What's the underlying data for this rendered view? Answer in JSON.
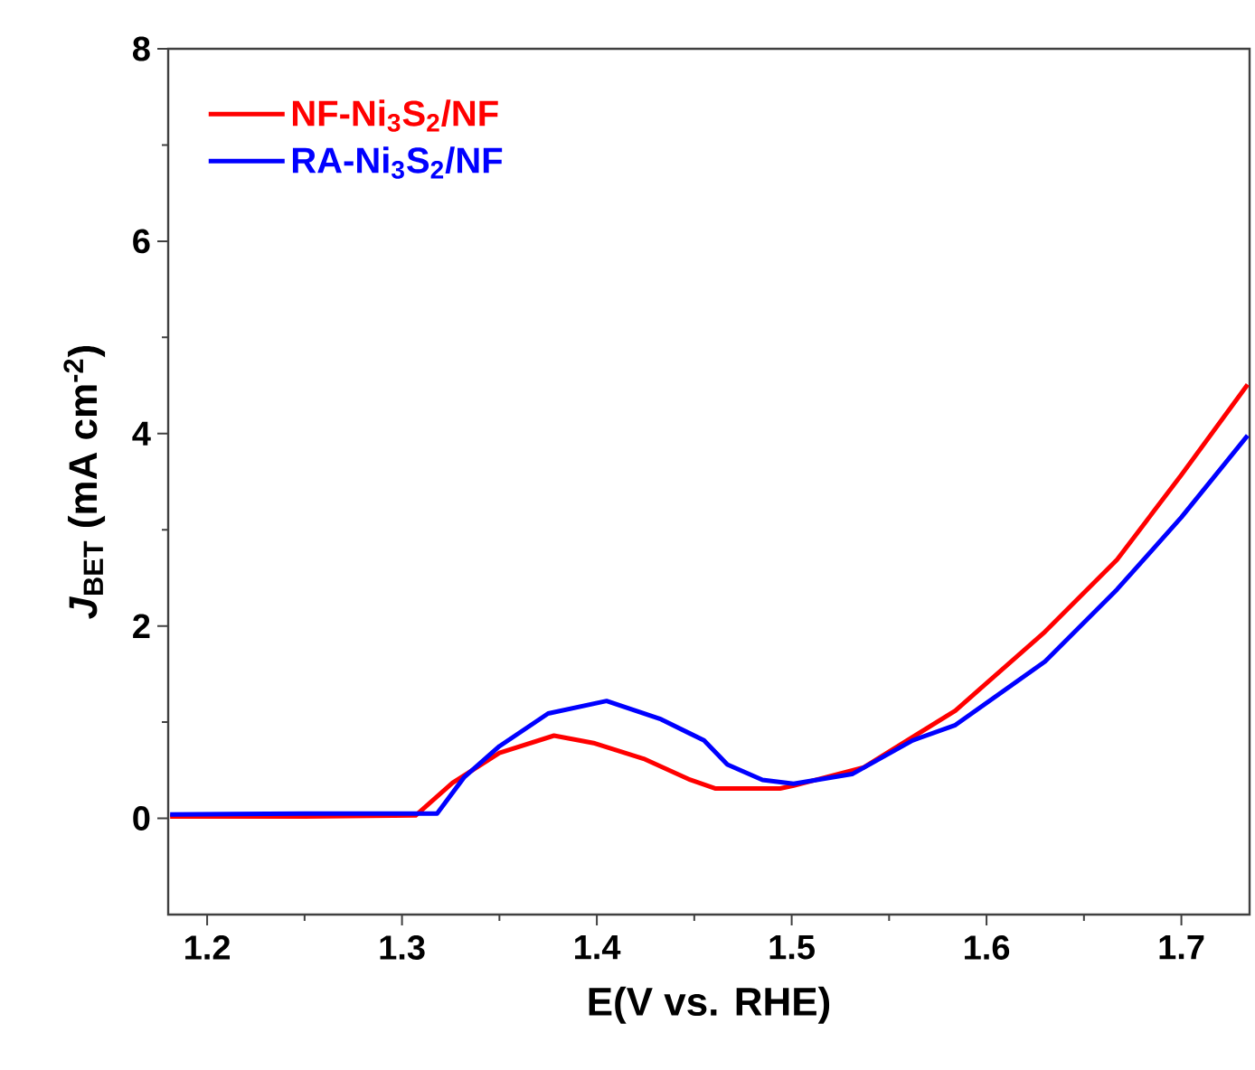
{
  "chart_data": {
    "type": "line",
    "xlabel": "E(V vs. RHE)",
    "ylabel": "*J*$_{BET}$ (mA cm$^{-2}$)",
    "xlim": [
      1.18,
      1.735
    ],
    "ylim": [
      -1,
      8
    ],
    "xticks": [
      1.2,
      1.3,
      1.4,
      1.5,
      1.6,
      1.7
    ],
    "yticks": [
      0,
      2,
      4,
      6,
      8
    ],
    "legend": "top left",
    "series": [
      {
        "name": "NF-Ni$_{3}$S$_{2}$/NF",
        "color": "#ff0000",
        "x": [
          1.181,
          1.25,
          1.307,
          1.326,
          1.35,
          1.378,
          1.399,
          1.424,
          1.448,
          1.461,
          1.494,
          1.501,
          1.537,
          1.584,
          1.63,
          1.667,
          1.7,
          1.734
        ],
        "values": [
          0.02,
          0.02,
          0.03,
          0.37,
          0.68,
          0.86,
          0.78,
          0.62,
          0.4,
          0.31,
          0.31,
          0.34,
          0.53,
          1.12,
          1.94,
          2.69,
          3.57,
          4.51
        ]
      },
      {
        "name": "RA-Ni$_{3}$S$_{2}$/NF",
        "color": "#0000ff",
        "x": [
          1.181,
          1.25,
          1.318,
          1.332,
          1.35,
          1.375,
          1.405,
          1.433,
          1.455,
          1.467,
          1.485,
          1.501,
          1.531,
          1.562,
          1.584,
          1.63,
          1.667,
          1.7,
          1.734
        ],
        "values": [
          0.04,
          0.05,
          0.05,
          0.43,
          0.75,
          1.09,
          1.22,
          1.03,
          0.81,
          0.56,
          0.4,
          0.36,
          0.46,
          0.81,
          0.97,
          1.63,
          2.38,
          3.13,
          3.98
        ]
      }
    ]
  }
}
